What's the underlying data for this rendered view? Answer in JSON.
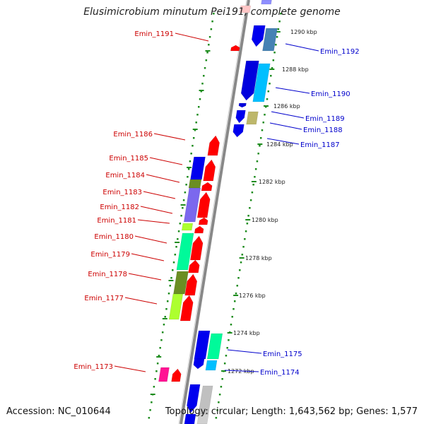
{
  "title": "Elusimicrobium minutum Pei191, complete genome",
  "accession": "Accession: NC_010644",
  "topology": "Topology: circular; Length: 1,643,562 bp; Genes: 1,577",
  "colors": {
    "backbone": "#888888",
    "ruler": "#1e8c1e",
    "left_label": "#cc0000",
    "right_label": "#0000cc",
    "tick_text": "#222222"
  },
  "ticks": [
    {
      "label": "1290 kbp"
    },
    {
      "label": "1288 kbp"
    },
    {
      "label": "1286 kbp"
    },
    {
      "label": "1284 kbp"
    },
    {
      "label": "1282 kbp"
    },
    {
      "label": "1280 kbp"
    },
    {
      "label": "1278 kbp"
    },
    {
      "label": "1276 kbp"
    },
    {
      "label": "1274 kbp"
    },
    {
      "label": "1272 kbp"
    }
  ],
  "gene_labels_left": [
    {
      "label": "Emin_1191"
    },
    {
      "label": "Emin_1186"
    },
    {
      "label": "Emin_1185"
    },
    {
      "label": "Emin_1184"
    },
    {
      "label": "Emin_1183"
    },
    {
      "label": "Emin_1182"
    },
    {
      "label": "Emin_1181"
    },
    {
      "label": "Emin_1180"
    },
    {
      "label": "Emin_1179"
    },
    {
      "label": "Emin_1178"
    },
    {
      "label": "Emin_1177"
    },
    {
      "label": "Emin_1173"
    }
  ],
  "gene_labels_right": [
    {
      "label": "Emin_1192"
    },
    {
      "label": "Emin_1190"
    },
    {
      "label": "Emin_1189"
    },
    {
      "label": "Emin_1188"
    },
    {
      "label": "Emin_1187"
    },
    {
      "label": "Emin_1175"
    },
    {
      "label": "Emin_1174"
    }
  ]
}
